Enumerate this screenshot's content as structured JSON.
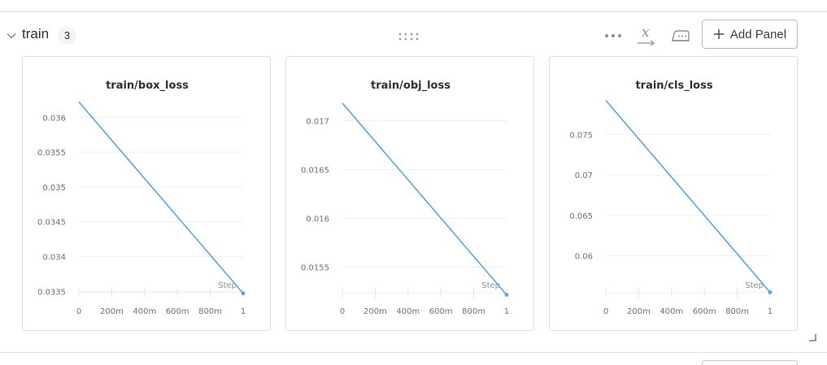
{
  "section": {
    "title": "train",
    "count": "3",
    "add_panel_label": "Add Panel",
    "icons": [
      "chevron-down-icon",
      "drag-handle-icon",
      "more-icon",
      "x-axis-icon",
      "bulk-edit-icon",
      "plus-icon",
      "resize-icon"
    ]
  },
  "colors": {
    "line": "#5ba5dc",
    "grid": "#eeeff1",
    "tick_text": "#6b7079",
    "title_text": "#2b2f36"
  },
  "chart_data": [
    {
      "type": "line",
      "title": "train/box_loss",
      "xlabel": "Step",
      "x": [
        0,
        1
      ],
      "y": [
        0.03622,
        0.03347
      ],
      "xticks": [
        0,
        0.2,
        0.4,
        0.6,
        0.8,
        1
      ],
      "xtick_labels": [
        "0",
        "200m",
        "400m",
        "600m",
        "800m",
        "1"
      ],
      "yticks": [
        0.0335,
        0.034,
        0.0345,
        0.035,
        0.0355,
        0.036
      ],
      "ytick_labels": [
        "0.0335",
        "0.034",
        "0.0345",
        "0.035",
        "0.0355",
        "0.036"
      ],
      "xlim": [
        0,
        1
      ],
      "ylim": [
        0.03348,
        0.03626
      ],
      "grid": true
    },
    {
      "type": "line",
      "title": "train/obj_loss",
      "xlabel": "Step",
      "x": [
        0,
        1
      ],
      "y": [
        0.01718,
        0.015218
      ],
      "xticks": [
        0,
        0.2,
        0.4,
        0.6,
        0.8,
        1
      ],
      "xtick_labels": [
        "0",
        "200m",
        "400m",
        "600m",
        "800m",
        "1"
      ],
      "yticks": [
        0.0155,
        0.016,
        0.0165,
        0.017
      ],
      "ytick_labels": [
        "0.0155",
        "0.016",
        "0.0165",
        "0.017"
      ],
      "xlim": [
        0,
        1
      ],
      "ylim": [
        0.01524,
        0.01722
      ],
      "grid": true
    },
    {
      "type": "line",
      "title": "train/cls_loss",
      "xlabel": "Step",
      "x": [
        0,
        1
      ],
      "y": [
        0.07925,
        0.05545
      ],
      "xticks": [
        0,
        0.2,
        0.4,
        0.6,
        0.8,
        1
      ],
      "xtick_labels": [
        "0",
        "200m",
        "400m",
        "600m",
        "800m",
        "1"
      ],
      "yticks": [
        0.06,
        0.065,
        0.07,
        0.075
      ],
      "ytick_labels": [
        "0.06",
        "0.065",
        "0.07",
        "0.075"
      ],
      "xlim": [
        0,
        1
      ],
      "ylim": [
        0.0554,
        0.0794
      ],
      "grid": true
    }
  ]
}
